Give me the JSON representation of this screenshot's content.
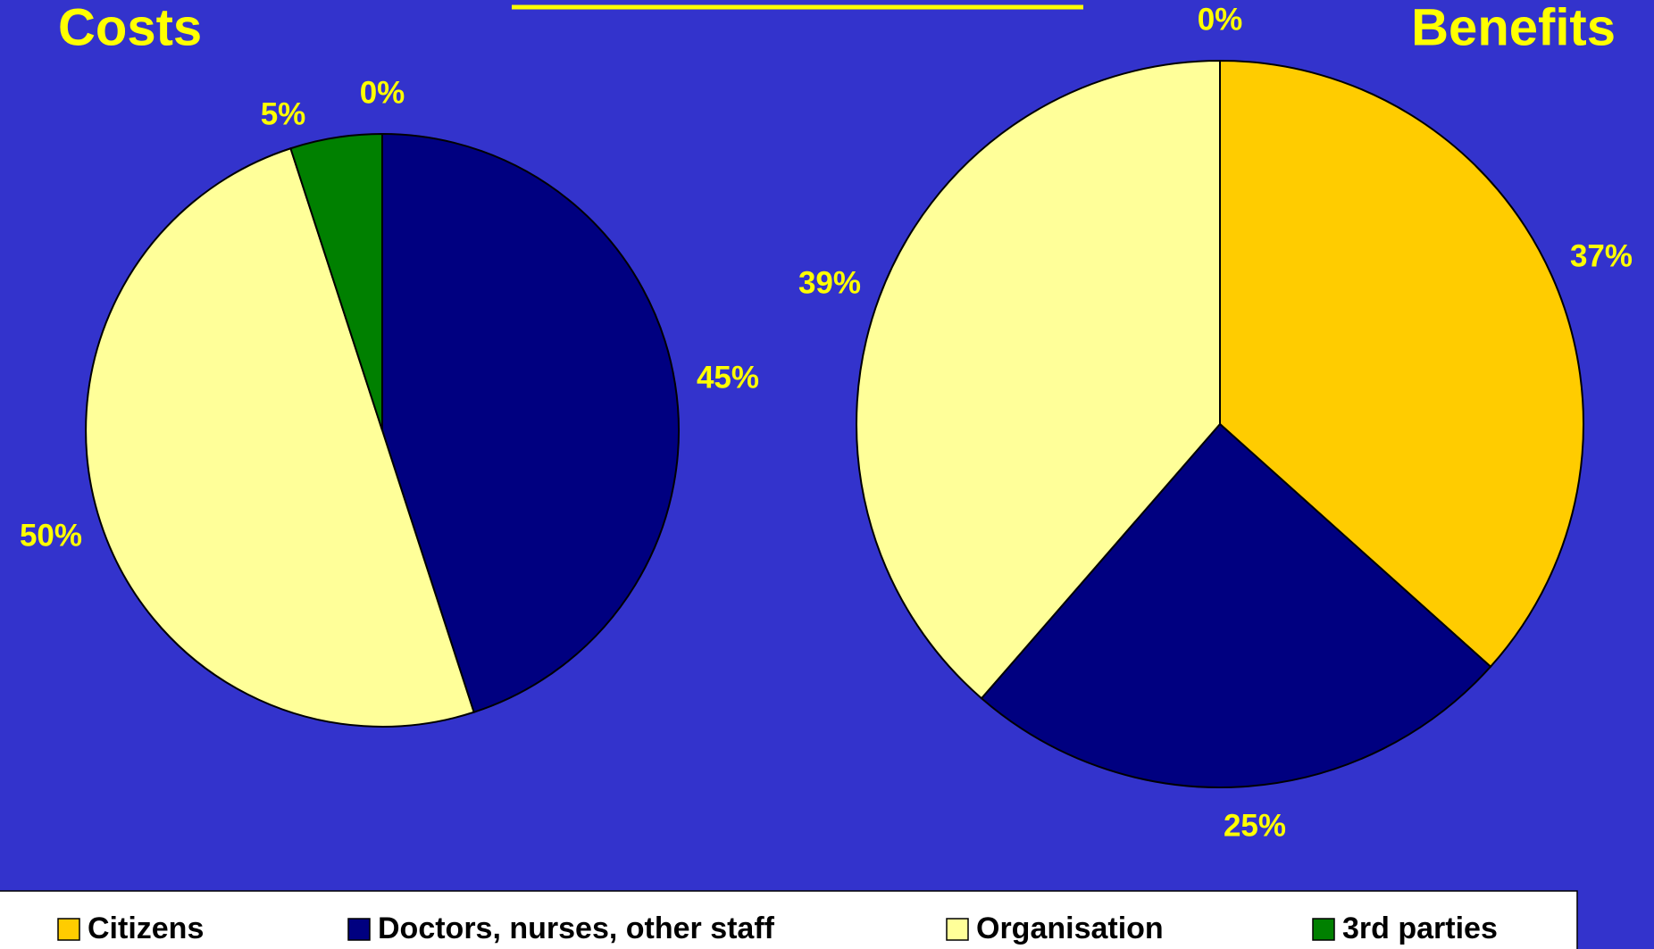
{
  "chart_data": [
    {
      "type": "pie",
      "title": "Costs",
      "categories": [
        "Citizens",
        "Doctors, nurses, other staff",
        "Organisation",
        "3rd parties"
      ],
      "values": [
        0,
        45,
        50,
        5
      ],
      "value_labels": [
        "0%",
        "45%",
        "50%",
        "5%"
      ],
      "colors": [
        "#ffcc00",
        "#000080",
        "#ffff99",
        "#008000"
      ]
    },
    {
      "type": "pie",
      "title": "Benefits",
      "categories": [
        "Citizens",
        "Doctors, nurses, other staff",
        "Organisation",
        "3rd parties"
      ],
      "values": [
        37,
        25,
        39,
        0
      ],
      "value_labels": [
        "37%",
        "25%",
        "39%",
        "0%"
      ],
      "colors": [
        "#ffcc00",
        "#000080",
        "#ffff99",
        "#008000"
      ]
    }
  ]
}
